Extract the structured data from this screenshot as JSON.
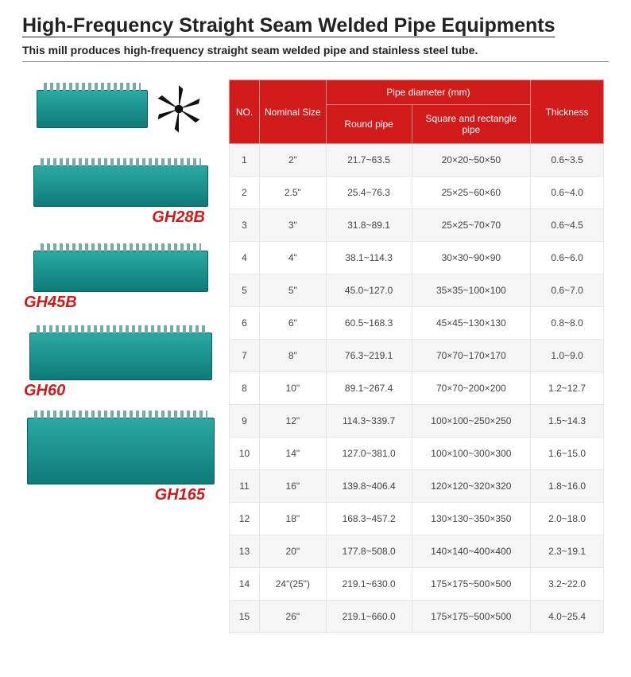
{
  "title": "High-Frequency Straight Seam Welded Pipe Equipments",
  "subtitle": "This mill produces high-frequency straight seam welded pipe and stainless steel tube.",
  "equipment": [
    {
      "label": "",
      "className": "first"
    },
    {
      "label": "GH28B",
      "className": "gh28b"
    },
    {
      "label": "GH45B",
      "className": "gh45b"
    },
    {
      "label": "GH60",
      "className": "gh60"
    },
    {
      "label": "GH165",
      "className": "gh165"
    }
  ],
  "table": {
    "header": {
      "no": "NO.",
      "nominal": "Nominal Size",
      "pipe_group": "Pipe diameter (mm)",
      "round": "Round pipe",
      "square": "Square and rectangle pipe",
      "thickness": "Thickness"
    },
    "header_colors": {
      "bg": "#d11a1a",
      "fg": "#ffffff"
    },
    "row_alt_bg": "#f5f5f5",
    "rows": [
      {
        "no": "1",
        "nominal": "2\"",
        "round": "21.7~63.5",
        "square": "20×20~50×50",
        "thickness": "0.6~3.5"
      },
      {
        "no": "2",
        "nominal": "2.5\"",
        "round": "25.4~76.3",
        "square": "25×25~60×60",
        "thickness": "0.6~4.0"
      },
      {
        "no": "3",
        "nominal": "3\"",
        "round": "31.8~89.1",
        "square": "25×25~70×70",
        "thickness": "0.6~4.5"
      },
      {
        "no": "4",
        "nominal": "4\"",
        "round": "38.1~114.3",
        "square": "30×30~90×90",
        "thickness": "0.6~6.0"
      },
      {
        "no": "5",
        "nominal": "5\"",
        "round": "45.0~127.0",
        "square": "35×35~100×100",
        "thickness": "0.6~7.0"
      },
      {
        "no": "6",
        "nominal": "6\"",
        "round": "60.5~168.3",
        "square": "45×45~130×130",
        "thickness": "0.8~8.0"
      },
      {
        "no": "7",
        "nominal": "8\"",
        "round": "76.3~219.1",
        "square": "70×70~170×170",
        "thickness": "1.0~9.0"
      },
      {
        "no": "8",
        "nominal": "10\"",
        "round": "89.1~267.4",
        "square": "70×70~200×200",
        "thickness": "1.2~12.7"
      },
      {
        "no": "9",
        "nominal": "12\"",
        "round": "114.3~339.7",
        "square": "100×100~250×250",
        "thickness": "1.5~14.3"
      },
      {
        "no": "10",
        "nominal": "14\"",
        "round": "127.0~381.0",
        "square": "100×100~300×300",
        "thickness": "1.6~15.0"
      },
      {
        "no": "11",
        "nominal": "16\"",
        "round": "139.8~406.4",
        "square": "120×120~320×320",
        "thickness": "1.8~16.0"
      },
      {
        "no": "12",
        "nominal": "18\"",
        "round": "168.3~457.2",
        "square": "130×130~350×350",
        "thickness": "2.0~18.0"
      },
      {
        "no": "13",
        "nominal": "20\"",
        "round": "177.8~508.0",
        "square": "140×140~400×400",
        "thickness": "2.3~19.1"
      },
      {
        "no": "14",
        "nominal": "24\"(25\")",
        "round": "219.1~630.0",
        "square": "175×175~500×500",
        "thickness": "3.2~22.0"
      },
      {
        "no": "15",
        "nominal": "26\"",
        "round": "219.1~660.0",
        "square": "175×175~500×500",
        "thickness": "4.0~25.4"
      }
    ]
  }
}
